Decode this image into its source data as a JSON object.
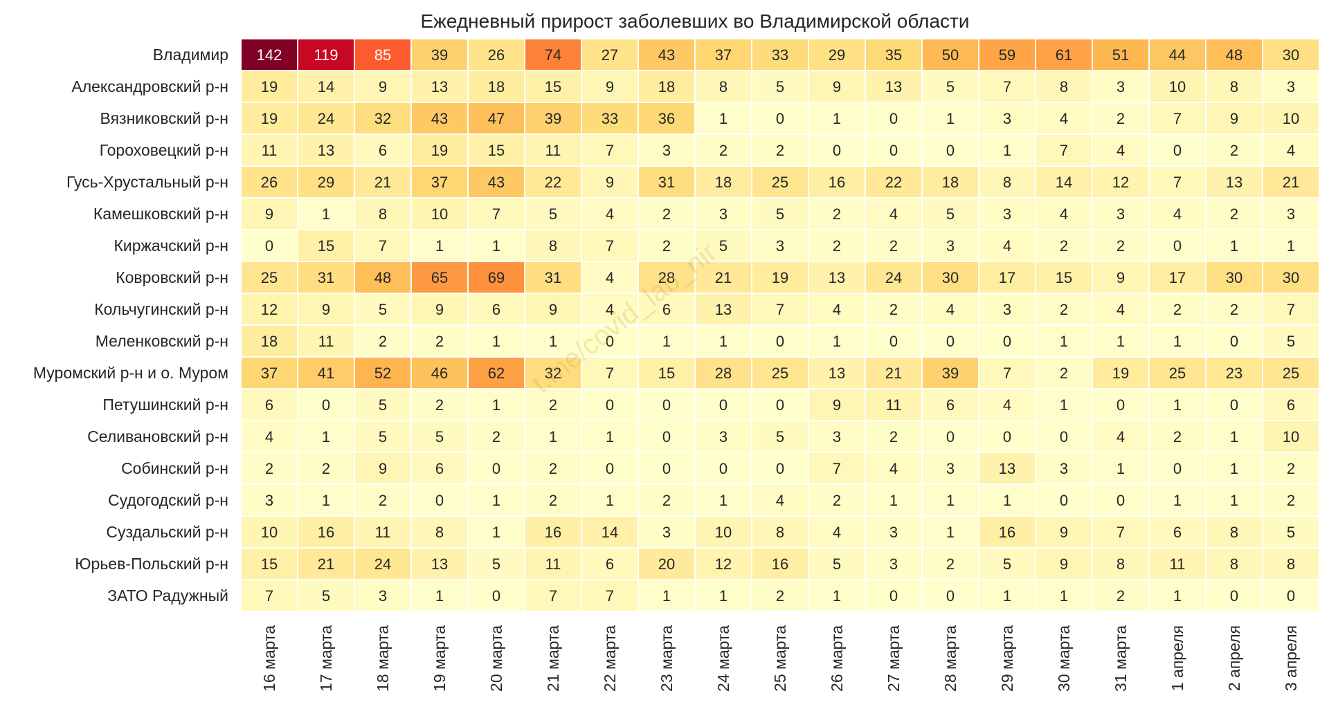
{
  "chart_data": {
    "type": "heatmap",
    "title": "Ежедневный прирост заболевших во Владимирской области",
    "xlabel": "",
    "ylabel": "",
    "watermark": "t.me/covid_lab_nir",
    "color_scale": [
      "#ffffcc",
      "#ffeda0",
      "#fed976",
      "#feb24c",
      "#fd8d3c",
      "#fc4e2a",
      "#e31a1c",
      "#bd0026",
      "#800026"
    ],
    "value_range": [
      0,
      142
    ],
    "x_categories": [
      "16 марта",
      "17 марта",
      "18 марта",
      "19 марта",
      "20 марта",
      "21 марта",
      "22 марта",
      "23 марта",
      "24 марта",
      "25 марта",
      "26 марта",
      "27 марта",
      "28 марта",
      "29 марта",
      "30 марта",
      "31 марта",
      "1 апреля",
      "2 апреля",
      "3 апреля"
    ],
    "y_categories": [
      "Владимир",
      "Александровский р-н",
      "Вязниковский р-н",
      "Гороховецкий р-н",
      "Гусь-Хрустальный р-н",
      "Камешковский р-н",
      "Киржачский р-н",
      "Ковровский р-н",
      "Кольчугинский р-н",
      "Меленковский р-н",
      "Муромский р-н и о. Муром",
      "Петушинский р-н",
      "Селивановский р-н",
      "Собинский р-н",
      "Судогодский р-н",
      "Суздальский р-н",
      "Юрьев-Польский р-н",
      "ЗАТО Радужный"
    ],
    "values": [
      [
        142,
        119,
        85,
        39,
        26,
        74,
        27,
        43,
        37,
        33,
        29,
        35,
        50,
        59,
        61,
        51,
        44,
        48,
        30
      ],
      [
        19,
        14,
        9,
        13,
        18,
        15,
        9,
        18,
        8,
        5,
        9,
        13,
        5,
        7,
        8,
        3,
        10,
        8,
        3
      ],
      [
        19,
        24,
        32,
        43,
        47,
        39,
        33,
        36,
        1,
        0,
        1,
        0,
        1,
        3,
        4,
        2,
        7,
        9,
        10
      ],
      [
        11,
        13,
        6,
        19,
        15,
        11,
        7,
        3,
        2,
        2,
        0,
        0,
        0,
        1,
        7,
        4,
        0,
        2,
        4
      ],
      [
        26,
        29,
        21,
        37,
        43,
        22,
        9,
        31,
        18,
        25,
        16,
        22,
        18,
        8,
        14,
        12,
        7,
        13,
        21
      ],
      [
        9,
        1,
        8,
        10,
        7,
        5,
        4,
        2,
        3,
        5,
        2,
        4,
        5,
        3,
        4,
        3,
        4,
        2,
        3
      ],
      [
        0,
        15,
        7,
        1,
        1,
        8,
        7,
        2,
        5,
        3,
        2,
        2,
        3,
        4,
        2,
        2,
        0,
        1,
        1
      ],
      [
        25,
        31,
        48,
        65,
        69,
        31,
        4,
        28,
        21,
        19,
        13,
        24,
        30,
        17,
        15,
        9,
        17,
        30,
        30
      ],
      [
        12,
        9,
        5,
        9,
        6,
        9,
        4,
        6,
        13,
        7,
        4,
        2,
        4,
        3,
        2,
        4,
        2,
        2,
        7
      ],
      [
        18,
        11,
        2,
        2,
        1,
        1,
        0,
        1,
        1,
        0,
        1,
        0,
        0,
        0,
        1,
        1,
        1,
        0,
        5
      ],
      [
        37,
        41,
        52,
        46,
        62,
        32,
        7,
        15,
        28,
        25,
        13,
        21,
        39,
        7,
        2,
        19,
        25,
        23,
        25
      ],
      [
        6,
        0,
        5,
        2,
        1,
        2,
        0,
        0,
        0,
        0,
        9,
        11,
        6,
        4,
        1,
        0,
        1,
        0,
        6
      ],
      [
        4,
        1,
        5,
        5,
        2,
        1,
        1,
        0,
        3,
        5,
        3,
        2,
        0,
        0,
        0,
        4,
        2,
        1,
        10
      ],
      [
        2,
        2,
        9,
        6,
        0,
        2,
        0,
        0,
        0,
        0,
        7,
        4,
        3,
        13,
        3,
        1,
        0,
        1,
        2
      ],
      [
        3,
        1,
        2,
        0,
        1,
        2,
        1,
        2,
        1,
        4,
        2,
        1,
        1,
        1,
        0,
        0,
        1,
        1,
        2
      ],
      [
        10,
        16,
        11,
        8,
        1,
        16,
        14,
        3,
        10,
        8,
        4,
        3,
        1,
        16,
        9,
        7,
        6,
        8,
        5
      ],
      [
        15,
        21,
        24,
        13,
        5,
        11,
        6,
        20,
        12,
        16,
        5,
        3,
        2,
        5,
        9,
        8,
        11,
        8,
        8
      ],
      [
        7,
        5,
        3,
        1,
        0,
        7,
        7,
        1,
        1,
        2,
        1,
        0,
        0,
        1,
        1,
        2,
        1,
        0,
        0
      ]
    ]
  }
}
